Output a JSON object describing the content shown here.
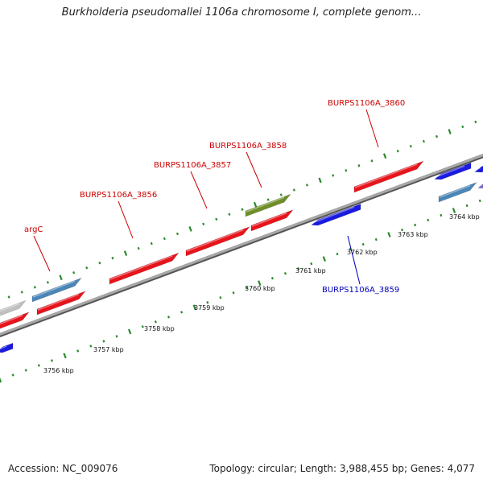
{
  "header": {
    "title": "Burkholderia pseudomallei 1106a chromosome I, complete genom..."
  },
  "footer": {
    "accession": "Accession: NC_009076",
    "summary": "Topology: circular; Length: 3,988,455 bp; Genes: 4,077"
  },
  "colors": {
    "forward_gene": "#e8141c",
    "reverse_gene": "#1a1ae0",
    "steelblue_gene": "#4a86b8",
    "olive_gene": "#6e8f28",
    "grey_gene": "#c0c0c0",
    "backbone": "#8a8a8a",
    "ticks": "#2a8a2a",
    "forward_label": "#cc0000",
    "reverse_label": "#0000bb"
  },
  "ticks": [
    {
      "label": "3756 kbp"
    },
    {
      "label": "3757 kbp"
    },
    {
      "label": "3758 kbp"
    },
    {
      "label": "3759 kbp"
    },
    {
      "label": "3760 kbp"
    },
    {
      "label": "3761 kbp"
    },
    {
      "label": "3762 kbp"
    },
    {
      "label": "3763 kbp"
    },
    {
      "label": "3764 kbp"
    }
  ],
  "gene_labels": [
    {
      "name": "argC"
    },
    {
      "name": "BURPS1106A_3856"
    },
    {
      "name": "BURPS1106A_3857"
    },
    {
      "name": "BURPS1106A_3858"
    },
    {
      "name": "BURPS1106A_3860"
    },
    {
      "name": "BURPS1106A_3859"
    }
  ]
}
